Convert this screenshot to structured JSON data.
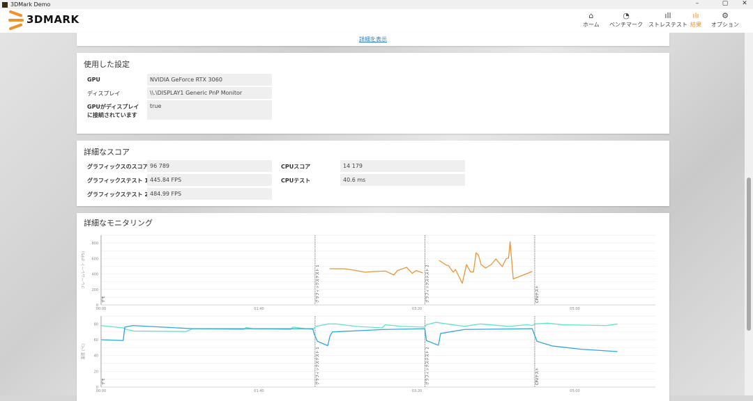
{
  "window": {
    "title": "3DMark Demo",
    "minimize": "–",
    "maximize": "▢",
    "close": "✕"
  },
  "header": {
    "logo_text": "3DMARK",
    "nav": [
      {
        "label": "ホーム",
        "icon": "home-icon",
        "glyph": "⌂"
      },
      {
        "label": "ベンチマーク",
        "icon": "gauge-icon",
        "glyph": "◔"
      },
      {
        "label": "ストレステスト",
        "icon": "bar-chart-icon",
        "glyph": "ıll"
      },
      {
        "label": "結果",
        "icon": "results-icon",
        "glyph": "ılı",
        "active": true
      },
      {
        "label": "オプション",
        "icon": "gear-icon",
        "glyph": "⚙"
      }
    ],
    "accent": "#f0922a"
  },
  "top_panel": {
    "link": "詳細を表示"
  },
  "settings": {
    "title": "使用した設定",
    "rows": [
      {
        "label": "GPU",
        "value": "NVIDIA GeForce RTX 3060"
      },
      {
        "label": "ディスプレイ",
        "value": "\\\\.\\DISPLAY1 Generic PnP Monitor"
      },
      {
        "label": "GPUがディスプレイに接続されています",
        "value": "true"
      }
    ]
  },
  "scores": {
    "title": "詳細なスコア",
    "left": [
      {
        "label": "グラフィックスのスコア",
        "value": "96 789"
      },
      {
        "label": "グラフィックステスト 1",
        "value": "445.84 FPS"
      },
      {
        "label": "グラフィックステスト 2",
        "value": "484.99 FPS"
      }
    ],
    "right": [
      {
        "label": "CPUスコア",
        "value": "14 179"
      },
      {
        "label": "CPUテスト",
        "value": "40.6 ms"
      }
    ]
  },
  "monitoring": {
    "title": "詳細なモニタリング"
  },
  "chart_data": [
    {
      "type": "line",
      "ylabel": "フレームレート (FPS)",
      "ylim": [
        0,
        900
      ],
      "yticks": [
        0,
        200,
        400,
        600,
        800
      ],
      "xlim": [
        0,
        351
      ],
      "xticks": [
        {
          "v": 0,
          "label": "00:00"
        },
        {
          "v": 100,
          "label": "01:40"
        },
        {
          "v": 200,
          "label": "03:20"
        },
        {
          "v": 300,
          "label": "05:00"
        }
      ],
      "markers": [
        {
          "t": 0,
          "label": "デモ"
        },
        {
          "t": 135.5,
          "label": "グラフィックステスト 1"
        },
        {
          "t": 205,
          "label": "グラフィックステスト 2"
        },
        {
          "t": 274.6,
          "label": "CPUテスト"
        }
      ],
      "grid": true,
      "series": [
        {
          "color": "#e8963a",
          "points": [
            [
              144.7,
              468
            ],
            [
              153.8,
              468
            ],
            [
              161,
              447
            ],
            [
              167,
              423
            ],
            [
              173,
              432
            ],
            [
              180,
              438
            ],
            [
              185.4,
              387
            ],
            [
              187.6,
              444
            ],
            [
              193.5,
              486
            ],
            [
              197,
              408
            ],
            [
              199.4,
              444
            ],
            [
              203.8,
              414
            ]
          ]
        },
        {
          "color": "#e8963a",
          "points": [
            [
              214,
              576
            ],
            [
              218.5,
              516
            ],
            [
              220,
              507
            ],
            [
              223,
              423
            ],
            [
              224.4,
              459
            ],
            [
              228.7,
              279
            ],
            [
              231.4,
              522
            ],
            [
              234,
              426
            ],
            [
              235.8,
              426
            ],
            [
              237.5,
              675
            ],
            [
              239,
              642
            ],
            [
              240.6,
              522
            ],
            [
              243.5,
              477
            ],
            [
              247,
              522
            ],
            [
              250,
              594
            ],
            [
              254,
              495
            ],
            [
              256.5,
              597
            ],
            [
              258,
              606
            ],
            [
              259,
              816
            ],
            [
              261,
              336
            ],
            [
              273,
              432
            ]
          ]
        }
      ]
    },
    {
      "type": "line",
      "ylabel": "温度 (°C)",
      "ylim": [
        0,
        90
      ],
      "yticks": [
        0,
        20,
        40,
        60,
        80
      ],
      "xlim": [
        0,
        351
      ],
      "xticks": [
        {
          "v": 0,
          "label": "00:00"
        },
        {
          "v": 100,
          "label": "01:40"
        },
        {
          "v": 200,
          "label": "03:20"
        },
        {
          "v": 300,
          "label": "05:00"
        }
      ],
      "markers": [
        {
          "t": 0,
          "label": "デモ"
        },
        {
          "t": 135.5,
          "label": "グラフィックステスト 1"
        },
        {
          "t": 205,
          "label": "グラフィックステスト 2"
        },
        {
          "t": 274.6,
          "label": "CPUテスト"
        }
      ],
      "grid": true,
      "series": [
        {
          "color": "#5ee3cc",
          "points": [
            [
              0,
              78
            ],
            [
              14,
              75
            ],
            [
              16,
              73
            ],
            [
              21,
              71
            ],
            [
              54,
              70.5
            ],
            [
              58,
              74
            ],
            [
              90,
              73
            ],
            [
              92,
              75.5
            ],
            [
              96,
              74
            ],
            [
              120,
              73
            ],
            [
              121.5,
              76
            ],
            [
              134,
              73
            ],
            [
              136,
              77
            ],
            [
              143.5,
              80
            ],
            [
              149,
              80
            ],
            [
              161,
              77
            ],
            [
              178,
              75
            ],
            [
              180,
              79
            ],
            [
              190,
              77
            ],
            [
              205,
              76
            ],
            [
              206,
              79
            ],
            [
              212,
              82
            ],
            [
              230,
              77
            ],
            [
              240,
              80
            ],
            [
              258,
              77
            ],
            [
              270,
              79
            ],
            [
              273,
              78
            ],
            [
              275,
              80
            ],
            [
              283,
              81
            ],
            [
              292,
              79
            ],
            [
              320,
              78
            ],
            [
              327,
              80
            ]
          ]
        },
        {
          "color": "#2ea6dc",
          "points": [
            [
              0,
              60
            ],
            [
              14,
              59
            ],
            [
              15,
              76
            ],
            [
              20,
              78
            ],
            [
              58,
              74
            ],
            [
              134,
              74
            ],
            [
              135,
              67
            ],
            [
              137,
              58
            ],
            [
              143.5,
              52.5
            ],
            [
              145,
              65
            ],
            [
              146.5,
              70
            ],
            [
              180,
              73
            ],
            [
              205,
              74
            ],
            [
              206,
              59
            ],
            [
              213.6,
              53
            ],
            [
              215,
              68
            ],
            [
              230,
              73
            ],
            [
              273,
              74
            ],
            [
              276,
              58
            ],
            [
              286,
              52
            ],
            [
              304,
              48
            ],
            [
              327,
              45
            ]
          ]
        }
      ]
    }
  ]
}
